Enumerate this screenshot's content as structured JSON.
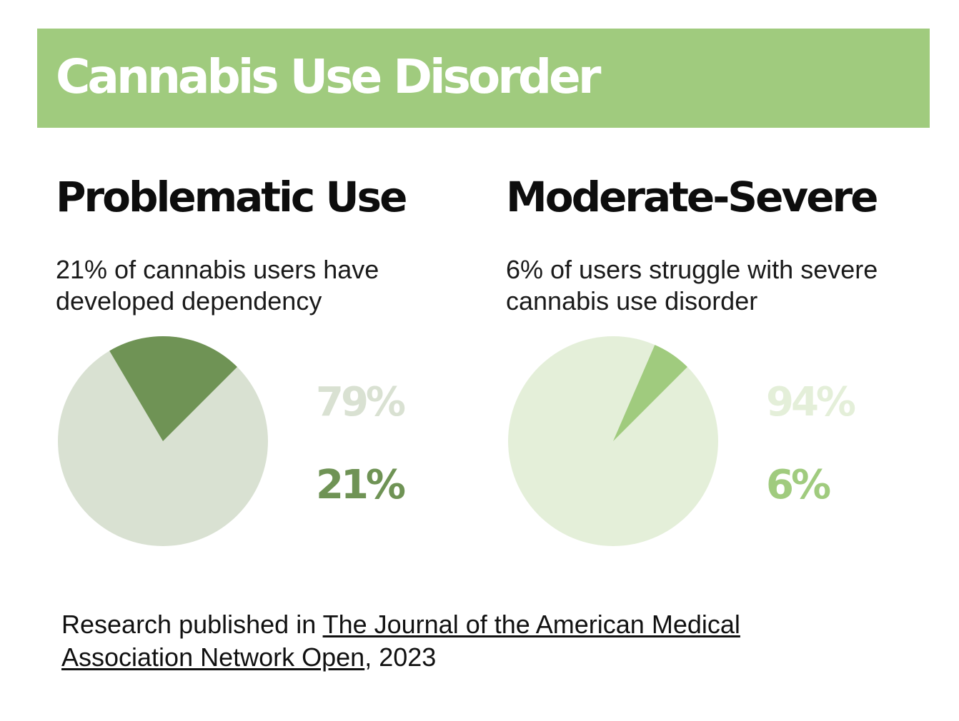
{
  "banner": {
    "title": "Cannabis Use Disorder",
    "color": "#a0cb7e"
  },
  "chart_data": [
    {
      "type": "pie",
      "title": "Problematic Use",
      "subtitle": "21% of cannabis users have developed dependency",
      "slices": [
        {
          "label": "79%",
          "value": 79,
          "color": "#d9e1d2"
        },
        {
          "label": "21%",
          "value": 21,
          "color": "#6f9355"
        }
      ]
    },
    {
      "type": "pie",
      "title": "Moderate-Severe",
      "subtitle": "6% of users struggle with severe cannabis use disorder",
      "slices": [
        {
          "label": "94%",
          "value": 94,
          "color": "#e4efd9"
        },
        {
          "label": "6%",
          "value": 6,
          "color": "#a0cb7e"
        }
      ]
    }
  ],
  "source": {
    "prefix": "Research published in ",
    "journal": "The Journal of the American Medical Association Network Open",
    "suffix": ", 2023"
  }
}
